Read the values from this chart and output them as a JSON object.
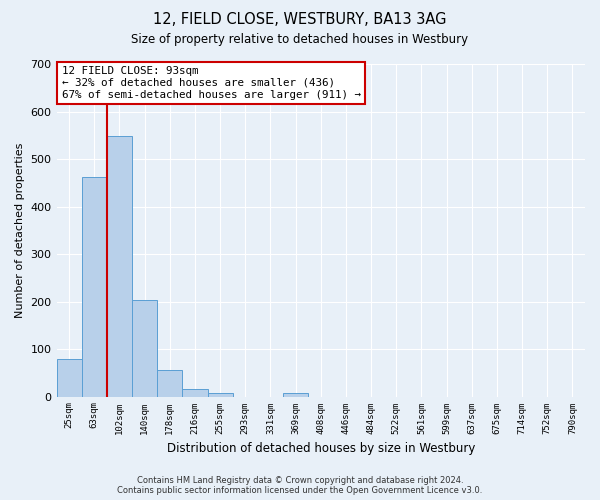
{
  "title": "12, FIELD CLOSE, WESTBURY, BA13 3AG",
  "subtitle": "Size of property relative to detached houses in Westbury",
  "xlabel": "Distribution of detached houses by size in Westbury",
  "ylabel": "Number of detached properties",
  "bar_categories": [
    "25sqm",
    "63sqm",
    "102sqm",
    "140sqm",
    "178sqm",
    "216sqm",
    "255sqm",
    "293sqm",
    "331sqm",
    "369sqm",
    "408sqm",
    "446sqm",
    "484sqm",
    "522sqm",
    "561sqm",
    "599sqm",
    "637sqm",
    "675sqm",
    "714sqm",
    "752sqm",
    "790sqm"
  ],
  "bar_values": [
    80,
    462,
    548,
    203,
    55,
    15,
    8,
    0,
    0,
    8,
    0,
    0,
    0,
    0,
    0,
    0,
    0,
    0,
    0,
    0,
    0
  ],
  "bar_color": "#b8d0ea",
  "bar_edge_color": "#5a9fd4",
  "ylim": [
    0,
    700
  ],
  "yticks": [
    0,
    100,
    200,
    300,
    400,
    500,
    600,
    700
  ],
  "property_line_color": "#cc0000",
  "annotation_text": "12 FIELD CLOSE: 93sqm\n← 32% of detached houses are smaller (436)\n67% of semi-detached houses are larger (911) →",
  "annotation_box_color": "#ffffff",
  "annotation_box_edge": "#cc0000",
  "footer": "Contains HM Land Registry data © Crown copyright and database right 2024.\nContains public sector information licensed under the Open Government Licence v3.0.",
  "bg_color": "#e8f0f8",
  "plot_bg_color": "#e8f0f8",
  "grid_color": "#ffffff"
}
